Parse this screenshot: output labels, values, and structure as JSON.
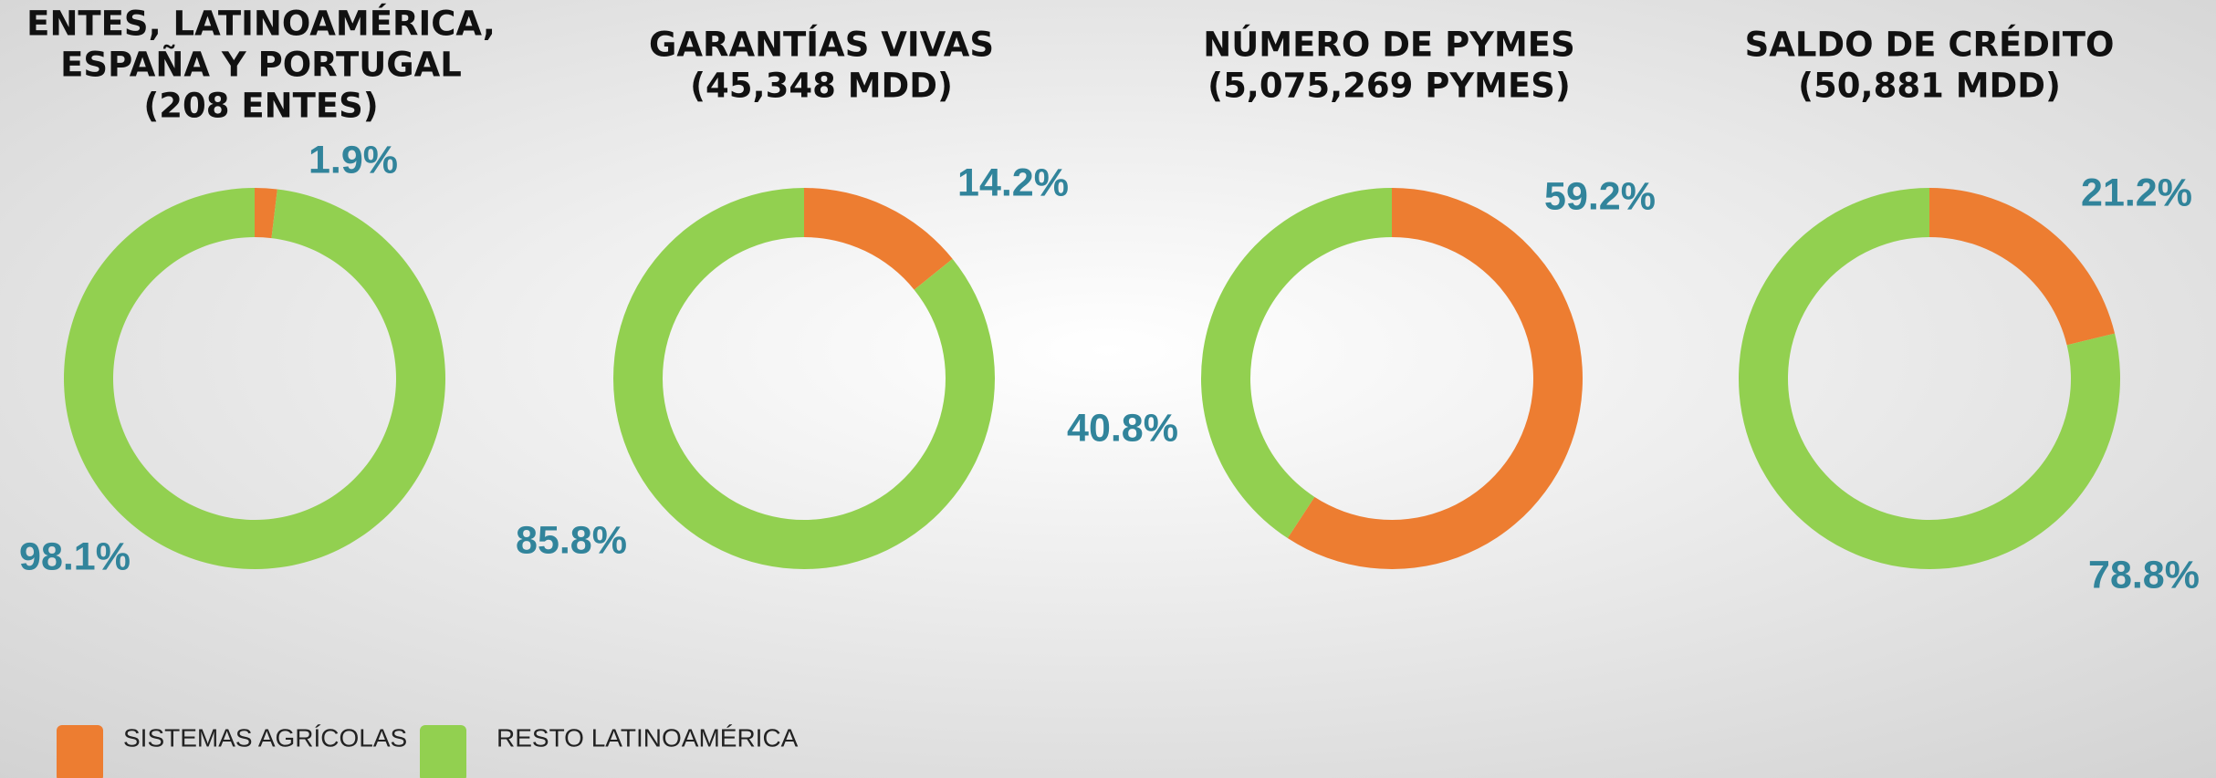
{
  "chart_data": [
    {
      "type": "donut",
      "title": [
        "ENTES, LATINOAMÉRICA,",
        "ESPAÑA Y PORTUGAL",
        "(208 ENTES)"
      ],
      "categories": [
        "SISTEMAS AGRÍCOLAS",
        "RESTO LATINOAMÉRICA"
      ],
      "colors": [
        "#ed7d31",
        "#92d050"
      ],
      "values": [
        1.9,
        98.1
      ],
      "value_labels": [
        "1.9%",
        "98.1%"
      ]
    },
    {
      "type": "donut",
      "title": [
        "GARANTÍAS VIVAS",
        "(45,348 MDD)"
      ],
      "categories": [
        "SISTEMAS AGRÍCOLAS",
        "RESTO LATINOAMÉRICA"
      ],
      "colors": [
        "#ed7d31",
        "#92d050"
      ],
      "values": [
        14.2,
        85.8
      ],
      "value_labels": [
        "14.2%",
        "85.8%"
      ]
    },
    {
      "type": "donut",
      "title": [
        "NÚMERO DE PYMES",
        "(5,075,269 PYMES)"
      ],
      "categories": [
        "SISTEMAS AGRÍCOLAS",
        "RESTO LATINOAMÉRICA"
      ],
      "colors": [
        "#ed7d31",
        "#92d050"
      ],
      "values": [
        59.2,
        40.8
      ],
      "value_labels": [
        "59.2%",
        "40.8%"
      ]
    },
    {
      "type": "donut",
      "title": [
        "SALDO DE CRÉDITO",
        "(50,881 MDD)"
      ],
      "categories": [
        "SISTEMAS AGRÍCOLAS",
        "RESTO LATINOAMÉRICA"
      ],
      "colors": [
        "#ed7d31",
        "#92d050"
      ],
      "values": [
        21.2,
        78.8
      ],
      "value_labels": [
        "21.2%",
        "78.8%"
      ]
    }
  ]
}
